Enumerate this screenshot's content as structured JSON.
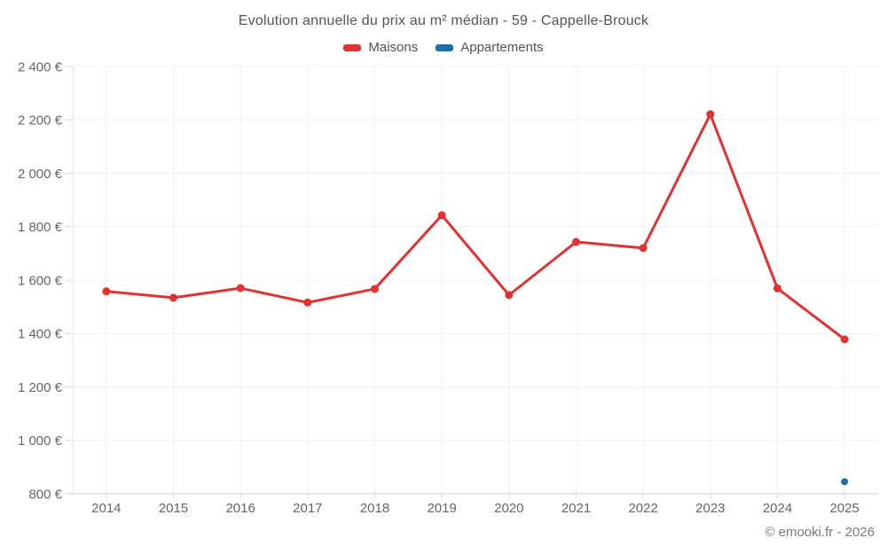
{
  "title": "Evolution annuelle du prix au m² médian - 59 - Cappelle-Brouck",
  "legend": {
    "items": [
      {
        "label": "Maisons",
        "color": "#e03232"
      },
      {
        "label": "Appartements",
        "color": "#1c70a8"
      }
    ]
  },
  "watermark": "© emooki.fr - 2026",
  "colors": {
    "background": "#ffffff",
    "grid": "#f0f0f0",
    "axis": "#cccccc",
    "axis_left": "#e3e3e3",
    "tick": "#d9d9d9",
    "text": "#666666",
    "title_text": "#555555",
    "watermark_text": "#7b7b7b",
    "maisons": "#e03232",
    "appartements": "#1c70a8"
  },
  "chart_data": {
    "type": "line",
    "title": "Evolution annuelle du prix au m² médian - 59 - Cappelle-Brouck",
    "xlabel": "",
    "ylabel": "",
    "x_labels": [
      "2014",
      "2015",
      "2016",
      "2017",
      "2018",
      "2019",
      "2020",
      "2021",
      "2022",
      "2023",
      "2024",
      "2025"
    ],
    "series": [
      {
        "name": "Maisons",
        "color": "#e03232",
        "marker_radius": 4.5,
        "values": [
          1558,
          1534,
          1570,
          1516,
          1567,
          1843,
          1544,
          1743,
          1720,
          2221,
          1569,
          1378
        ]
      },
      {
        "name": "Appartements",
        "color": "#1c70a8",
        "marker_radius": 4,
        "values": [
          null,
          null,
          null,
          null,
          null,
          null,
          null,
          null,
          null,
          null,
          null,
          845
        ]
      }
    ],
    "ylim": [
      800,
      2400
    ],
    "ytick_values": [
      800,
      1000,
      1200,
      1400,
      1600,
      1800,
      2000,
      2200,
      2400
    ],
    "ytick_labels": [
      "800 €",
      "1 000 €",
      "1 200 €",
      "1 400 €",
      "1 600 €",
      "1 800 €",
      "2 000 €",
      "2 200 €",
      "2 400 €"
    ],
    "unit": "€",
    "grid": true,
    "legend_position": "top"
  }
}
